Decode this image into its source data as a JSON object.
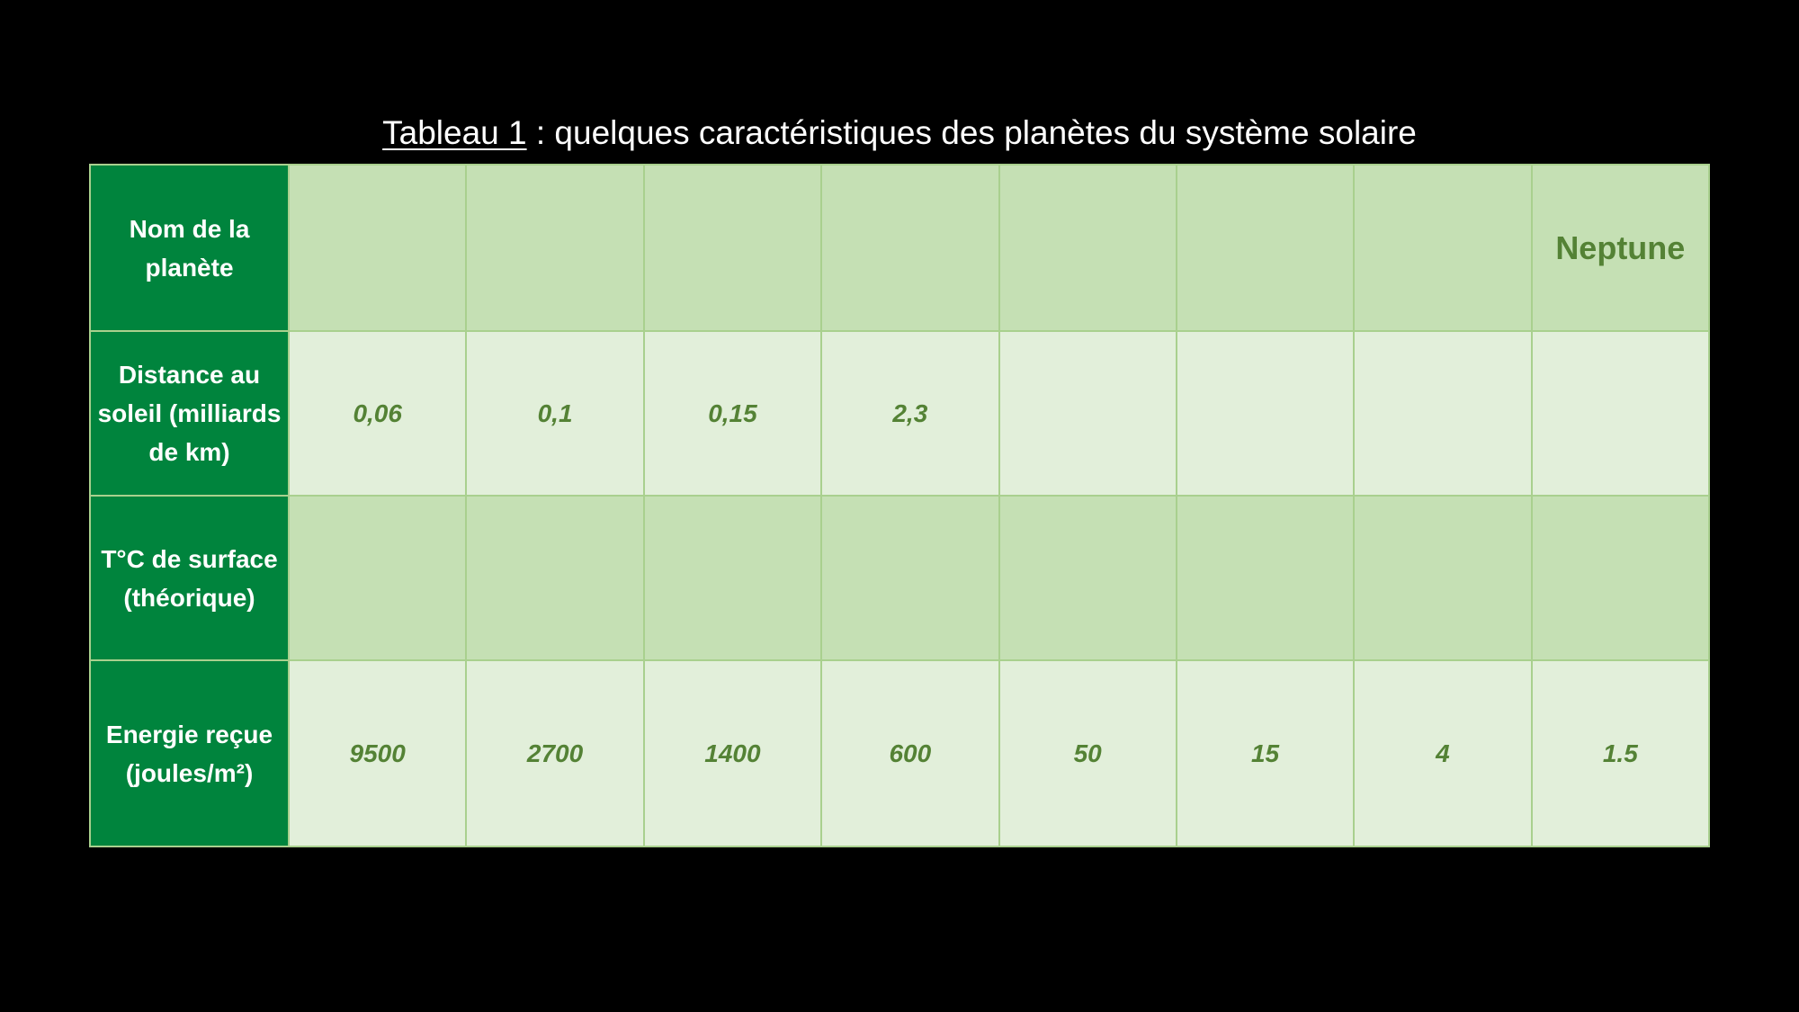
{
  "title": {
    "lead": "Tableau 1",
    "rest": " : quelques caractéristiques des planètes du système solaire"
  },
  "table": {
    "row_headers": [
      "Nom de la planète",
      "Distance au soleil (milliards de km)",
      "T°C de surface (théorique)",
      "Energie reçue (joules/m²)"
    ],
    "names": [
      "",
      "",
      "",
      "",
      "",
      "",
      "",
      "Neptune"
    ],
    "distances": [
      "0,06",
      "0,1",
      "0,15",
      "2,3",
      "",
      "",
      "",
      ""
    ],
    "temperatures": [
      "",
      "",
      "",
      "",
      "",
      "",
      "",
      ""
    ],
    "energies": [
      "9500",
      "2700",
      "1400",
      "600",
      "50",
      "15",
      "4",
      "1.5"
    ]
  },
  "colors": {
    "header_green": "#00843d",
    "row_dark": "#c5e0b4",
    "row_light": "#e2efda",
    "text_green": "#548235",
    "border": "#a9d08e"
  }
}
